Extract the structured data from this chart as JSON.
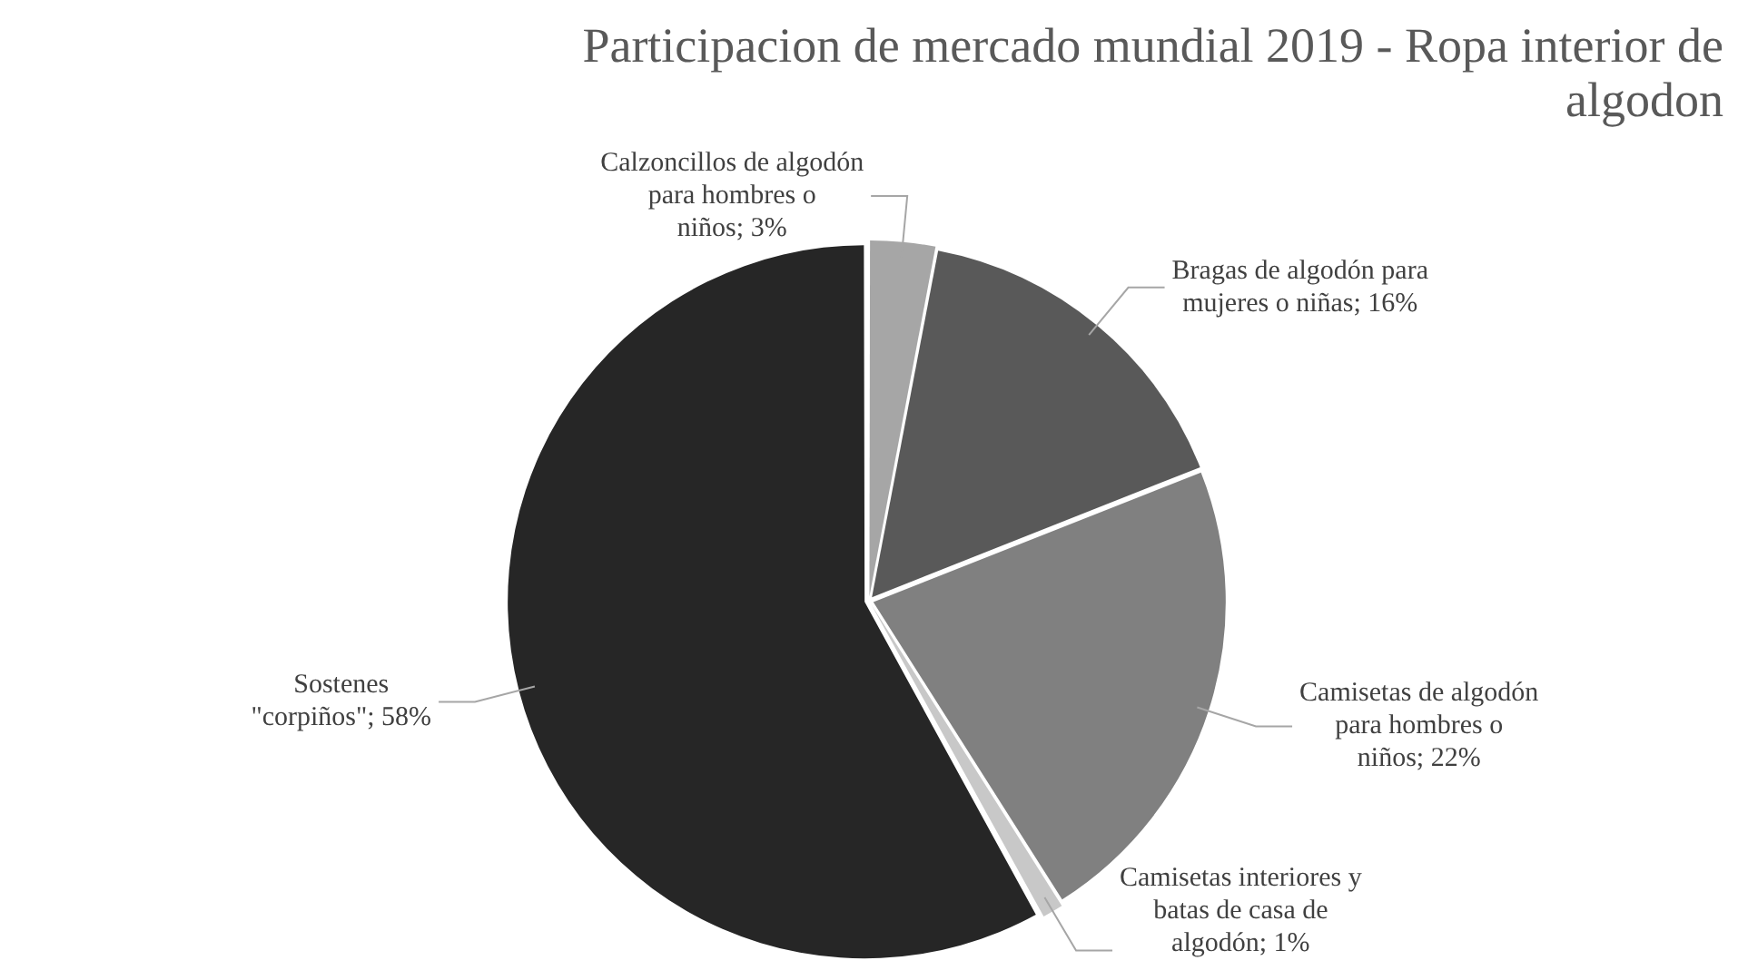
{
  "chart_data": {
    "type": "pie",
    "title": "Participacion de mercado mundial 2019 - Ropa interior de algodon",
    "categories": [
      "Calzoncillos de algodón para hombres o niños",
      "Bragas de algodón para mujeres o niñas",
      "Camisetas de algodón para hombres o niños",
      "Camisetas interiores y batas de casa de algodón",
      "Sostenes \"corpiños\""
    ],
    "values": [
      3,
      16,
      22,
      1,
      58
    ],
    "value_labels": [
      "3%",
      "16%",
      "22%",
      "1%",
      "58%"
    ],
    "colors": [
      "#a6a6a6",
      "#595959",
      "#808080",
      "#c8c8c8",
      "#262626"
    ],
    "legend": false
  }
}
